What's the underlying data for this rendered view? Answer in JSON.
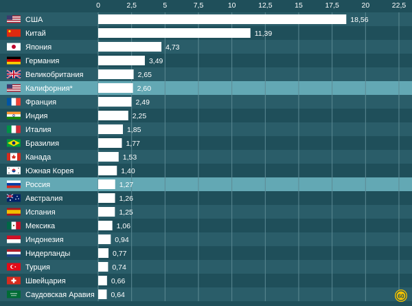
{
  "chart_data": {
    "type": "bar",
    "orientation": "horizontal",
    "title": "",
    "xlabel": "",
    "ylabel": "",
    "xlim": [
      0,
      22.5
    ],
    "ticks": [
      "0",
      "2,5",
      "5",
      "7,5",
      "10",
      "12,5",
      "15",
      "17,5",
      "20",
      "22,5"
    ],
    "tick_values": [
      0,
      2.5,
      5,
      7.5,
      10,
      12.5,
      15,
      17.5,
      20,
      22.5
    ],
    "grid": true,
    "categories": [
      "США",
      "Китай",
      "Япония",
      "Германия",
      "Великобритания",
      "Калифорния*",
      "Франция",
      "Индия",
      "Италия",
      "Бразилия",
      "Канада",
      "Южная Корея",
      "Россия",
      "Австралия",
      "Испания",
      "Мексика",
      "Индонезия",
      "Нидерланды",
      "Турция",
      "Швейцария",
      "Саудовская Аравия"
    ],
    "values": [
      18.56,
      11.39,
      4.73,
      3.49,
      2.65,
      2.6,
      2.49,
      2.25,
      1.85,
      1.77,
      1.53,
      1.4,
      1.27,
      1.26,
      1.25,
      1.06,
      0.94,
      0.77,
      0.74,
      0.66,
      0.64
    ],
    "value_labels": [
      "18,56",
      "11,39",
      "4,73",
      "3,49",
      "2,65",
      "2,60",
      "2,49",
      "2,25",
      "1,85",
      "1,77",
      "1,53",
      "1,40",
      "1,27",
      "1,26",
      "1,25",
      "1,06",
      "0,94",
      "0,77",
      "0,74",
      "0,66",
      "0,64"
    ],
    "flags": [
      "flag-us-icon",
      "flag-cn-icon",
      "flag-jp-icon",
      "flag-de-icon",
      "flag-gb-icon",
      "flag-us-icon",
      "flag-fr-icon",
      "flag-in-icon",
      "flag-it-icon",
      "flag-br-icon",
      "flag-ca-icon",
      "flag-kr-icon",
      "flag-ru-icon",
      "flag-au-icon",
      "flag-es-icon",
      "flag-mx-icon",
      "flag-id-icon",
      "flag-nl-icon",
      "flag-tr-icon",
      "flag-ch-icon",
      "flag-sa-icon"
    ],
    "highlighted": [
      "Калифорния*",
      "Россия"
    ],
    "colors": {
      "background": "#1f4f5a",
      "row_alt": "#2a5d69",
      "row_highlight": "#63a8b4",
      "bar": "#ffffff",
      "grid": "#5d8a94"
    }
  },
  "logo": {
    "text": "60",
    "icon": "logo-60-icon"
  }
}
